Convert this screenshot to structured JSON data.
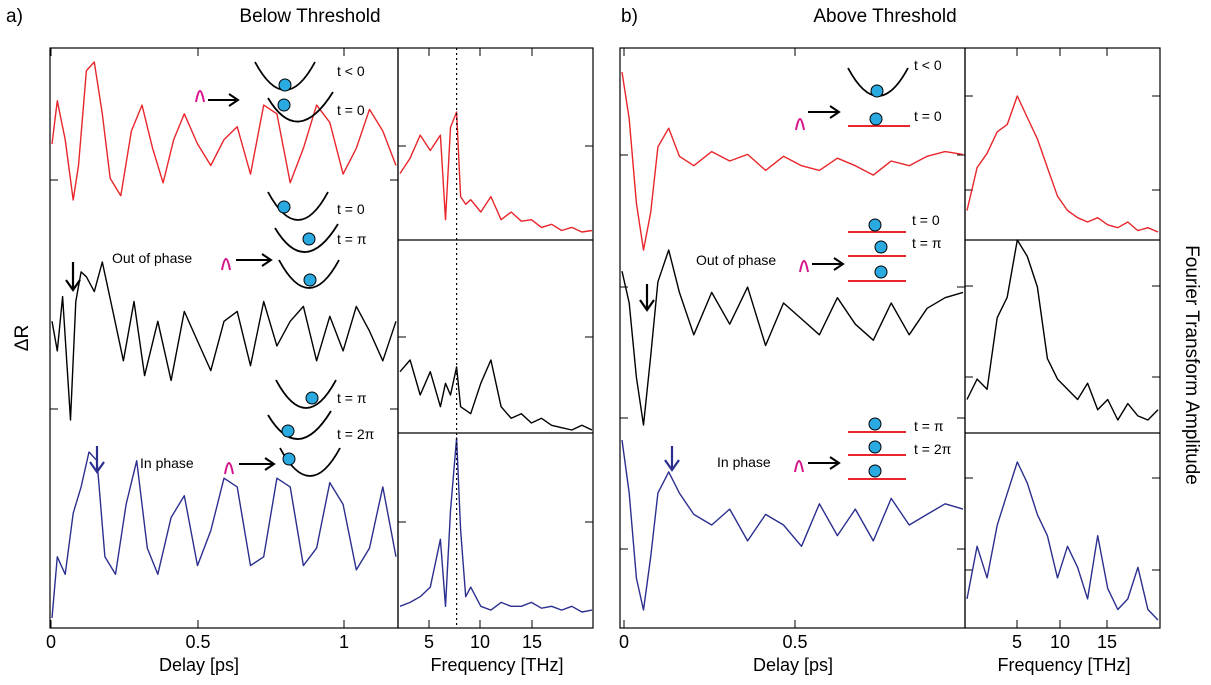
{
  "panel_a": {
    "letter": "a)",
    "title": "Below Threshold",
    "ylabel": "ΔR",
    "time_xlabel": "Delay [ps]",
    "freq_xlabel": "Frequency [THz]",
    "time_ticks": [
      "0",
      "0.5",
      "1"
    ],
    "freq_ticks": [
      "5",
      "10",
      "15"
    ],
    "dotted_line_freq": 6.6,
    "insets": {
      "top": {
        "labels": [
          "t < 0",
          "t = 0"
        ]
      },
      "middle": {
        "caption": "Out of phase",
        "labels": [
          "t = 0",
          "t = π"
        ]
      },
      "bottom": {
        "caption": "In phase",
        "labels": [
          "t = π",
          "t = 2π"
        ]
      }
    }
  },
  "panel_b": {
    "letter": "b)",
    "title": "Above Threshold",
    "time_xlabel": "Delay [ps]",
    "freq_xlabel": "Frequency [THz]",
    "right_ylabel": "Fourier Transform Amplitude",
    "time_ticks": [
      "0",
      "0.5"
    ],
    "freq_ticks": [
      "5",
      "10",
      "15"
    ],
    "insets": {
      "top": {
        "labels": [
          "t < 0",
          "t = 0"
        ]
      },
      "middle": {
        "caption": "Out of phase",
        "labels": [
          "t = 0",
          "t = π"
        ]
      },
      "bottom": {
        "caption": "In phase",
        "labels": [
          "t = π",
          "t = 2π"
        ]
      }
    }
  },
  "colors": {
    "red": "#e8262b",
    "black": "#000000",
    "blue": "#2b2f8e",
    "pulse": "#d6158c",
    "ball": "#29aae1"
  },
  "chart_data": [
    {
      "type": "line",
      "panel": "a-time",
      "xlabel": "Delay [ps]",
      "ylabel": "ΔR",
      "xlim": [
        0,
        1.3
      ],
      "series": [
        {
          "color": "#e8262b",
          "x": [
            0,
            0.02,
            0.05,
            0.08,
            0.1,
            0.13,
            0.16,
            0.19,
            0.22,
            0.26,
            0.3,
            0.34,
            0.38,
            0.42,
            0.46,
            0.5,
            0.55,
            0.6,
            0.65,
            0.7,
            0.75,
            0.8,
            0.85,
            0.9,
            0.95,
            1.0,
            1.05,
            1.1,
            1.15,
            1.2,
            1.25,
            1.3
          ],
          "y": [
            0.05,
            0.55,
            0.1,
            -0.6,
            -0.2,
            0.9,
            1.0,
            0.4,
            -0.35,
            -0.55,
            0.2,
            0.5,
            0.0,
            -0.4,
            0.1,
            0.4,
            0.05,
            -0.2,
            0.1,
            0.25,
            -0.3,
            0.5,
            0.4,
            -0.4,
            0.0,
            0.5,
            0.3,
            -0.3,
            0.0,
            0.45,
            0.2,
            -0.2
          ]
        },
        {
          "color": "#000000",
          "x": [
            0,
            0.02,
            0.04,
            0.07,
            0.09,
            0.11,
            0.13,
            0.16,
            0.19,
            0.23,
            0.27,
            0.31,
            0.35,
            0.4,
            0.45,
            0.5,
            0.55,
            0.6,
            0.65,
            0.7,
            0.75,
            0.8,
            0.85,
            0.9,
            0.95,
            1.0,
            1.05,
            1.1,
            1.15,
            1.2,
            1.25,
            1.3
          ],
          "y": [
            0.1,
            -0.2,
            0.35,
            -0.9,
            0.3,
            0.6,
            0.55,
            0.4,
            0.7,
            0.2,
            -0.3,
            0.3,
            -0.45,
            0.1,
            -0.5,
            0.2,
            -0.1,
            -0.4,
            0.1,
            0.2,
            -0.35,
            0.3,
            -0.15,
            0.1,
            0.25,
            -0.3,
            0.15,
            -0.2,
            0.25,
            0.0,
            -0.3,
            0.1
          ]
        },
        {
          "color": "#2b2f8e",
          "x": [
            0,
            0.02,
            0.05,
            0.08,
            0.11,
            0.14,
            0.17,
            0.2,
            0.24,
            0.28,
            0.32,
            0.36,
            0.4,
            0.45,
            0.5,
            0.55,
            0.6,
            0.65,
            0.7,
            0.75,
            0.8,
            0.85,
            0.9,
            0.95,
            1.0,
            1.05,
            1.1,
            1.15,
            1.2,
            1.25,
            1.3
          ],
          "y": [
            -1.0,
            -0.3,
            -0.5,
            0.2,
            0.5,
            0.9,
            0.8,
            -0.3,
            -0.5,
            0.3,
            0.8,
            -0.2,
            -0.5,
            0.15,
            0.4,
            -0.4,
            0.0,
            0.6,
            0.5,
            -0.4,
            -0.3,
            0.6,
            0.5,
            -0.4,
            -0.2,
            0.55,
            0.3,
            -0.45,
            -0.2,
            0.5,
            -0.3
          ]
        }
      ]
    },
    {
      "type": "line",
      "panel": "a-fft",
      "xlabel": "Frequency [THz]",
      "xlim": [
        1,
        20
      ],
      "series": [
        {
          "color": "#e8262b",
          "x": [
            1,
            2,
            3,
            4,
            5,
            5.5,
            6,
            6.6,
            7,
            7.5,
            8,
            9,
            10,
            11,
            12,
            13,
            14,
            15,
            16,
            17,
            18,
            19,
            20
          ],
          "y": [
            0.45,
            0.55,
            0.7,
            0.6,
            0.7,
            0.15,
            0.75,
            0.85,
            0.3,
            0.25,
            0.28,
            0.2,
            0.3,
            0.15,
            0.2,
            0.14,
            0.15,
            0.1,
            0.12,
            0.08,
            0.1,
            0.07,
            0.08
          ]
        },
        {
          "color": "#000000",
          "x": [
            1,
            2,
            3,
            4,
            5,
            5.5,
            6,
            6.6,
            7,
            8,
            9,
            10,
            11,
            12,
            13,
            14,
            15,
            16,
            17,
            18,
            19,
            20
          ],
          "y": [
            0.3,
            0.35,
            0.2,
            0.3,
            0.15,
            0.25,
            0.2,
            0.32,
            0.15,
            0.12,
            0.25,
            0.35,
            0.15,
            0.1,
            0.12,
            0.08,
            0.1,
            0.07,
            0.06,
            0.05,
            0.07,
            0.05
          ]
        },
        {
          "color": "#2b2f8e",
          "x": [
            1,
            2,
            3,
            4,
            5,
            5.5,
            6,
            6.6,
            7,
            7.5,
            8,
            9,
            10,
            11,
            12,
            13,
            14,
            15,
            16,
            17,
            18,
            19,
            20
          ],
          "y": [
            0.1,
            0.12,
            0.15,
            0.2,
            0.45,
            0.1,
            0.6,
            0.98,
            0.5,
            0.15,
            0.2,
            0.1,
            0.08,
            0.12,
            0.1,
            0.1,
            0.12,
            0.09,
            0.1,
            0.08,
            0.1,
            0.07,
            0.08
          ]
        }
      ]
    },
    {
      "type": "line",
      "panel": "b-time",
      "xlabel": "Delay [ps]",
      "xlim": [
        0,
        0.95
      ],
      "series": [
        {
          "color": "#e8262b",
          "x": [
            0,
            0.02,
            0.04,
            0.06,
            0.08,
            0.1,
            0.13,
            0.16,
            0.2,
            0.25,
            0.3,
            0.35,
            0.4,
            0.45,
            0.5,
            0.55,
            0.6,
            0.65,
            0.7,
            0.75,
            0.8,
            0.85,
            0.9,
            0.95
          ],
          "y": [
            1.0,
            0.5,
            -0.4,
            -0.9,
            -0.5,
            0.2,
            0.4,
            0.1,
            0.0,
            0.15,
            0.05,
            0.12,
            -0.05,
            0.1,
            0.0,
            -0.05,
            0.08,
            0.0,
            -0.1,
            0.05,
            0.0,
            0.1,
            0.15,
            0.12
          ]
        },
        {
          "color": "#000000",
          "x": [
            0,
            0.02,
            0.04,
            0.06,
            0.08,
            0.1,
            0.13,
            0.16,
            0.2,
            0.25,
            0.3,
            0.35,
            0.4,
            0.45,
            0.5,
            0.55,
            0.6,
            0.65,
            0.7,
            0.75,
            0.8,
            0.85,
            0.9,
            0.95
          ],
          "y": [
            0.5,
            0.2,
            -0.5,
            -0.95,
            -0.3,
            0.4,
            0.7,
            0.3,
            -0.1,
            0.3,
            0.0,
            0.35,
            -0.2,
            0.2,
            0.05,
            -0.1,
            0.25,
            0.0,
            -0.15,
            0.2,
            -0.1,
            0.15,
            0.25,
            0.3
          ]
        },
        {
          "color": "#2b2f8e",
          "x": [
            0,
            0.02,
            0.04,
            0.06,
            0.08,
            0.1,
            0.13,
            0.16,
            0.2,
            0.25,
            0.3,
            0.35,
            0.4,
            0.45,
            0.5,
            0.55,
            0.6,
            0.65,
            0.7,
            0.75,
            0.8,
            0.85,
            0.9,
            0.95
          ],
          "y": [
            0.9,
            0.4,
            -0.4,
            -0.7,
            -0.2,
            0.4,
            0.6,
            0.4,
            0.2,
            0.1,
            0.25,
            -0.05,
            0.2,
            0.1,
            -0.1,
            0.3,
            0.0,
            0.25,
            -0.05,
            0.35,
            0.1,
            0.2,
            0.3,
            0.25
          ]
        }
      ]
    },
    {
      "type": "line",
      "panel": "b-fft",
      "xlabel": "Frequency [THz]",
      "ylabel": "Fourier Transform Amplitude",
      "xlim": [
        1,
        20
      ],
      "series": [
        {
          "color": "#e8262b",
          "x": [
            1,
            2,
            3,
            4,
            5,
            6,
            7,
            8,
            9,
            10,
            11,
            12,
            13,
            14,
            15,
            16,
            17,
            18,
            19,
            20
          ],
          "y": [
            0.2,
            0.5,
            0.6,
            0.75,
            0.8,
            1.0,
            0.85,
            0.7,
            0.5,
            0.3,
            0.2,
            0.15,
            0.12,
            0.15,
            0.1,
            0.08,
            0.12,
            0.06,
            0.08,
            0.05
          ]
        },
        {
          "color": "#000000",
          "x": [
            1,
            2,
            3,
            4,
            5,
            6,
            7,
            8,
            9,
            10,
            11,
            12,
            13,
            14,
            15,
            16,
            17,
            18,
            19,
            20
          ],
          "y": [
            0.2,
            0.3,
            0.25,
            0.6,
            0.7,
            0.98,
            0.9,
            0.75,
            0.4,
            0.3,
            0.25,
            0.2,
            0.28,
            0.15,
            0.2,
            0.1,
            0.18,
            0.12,
            0.1,
            0.15
          ]
        },
        {
          "color": "#2b2f8e",
          "x": [
            1,
            2,
            3,
            4,
            5,
            6,
            7,
            8,
            9,
            10,
            11,
            12,
            13,
            14,
            15,
            16,
            17,
            18,
            19,
            20
          ],
          "y": [
            0.2,
            0.45,
            0.3,
            0.55,
            0.7,
            0.85,
            0.75,
            0.6,
            0.5,
            0.3,
            0.45,
            0.35,
            0.2,
            0.5,
            0.25,
            0.15,
            0.2,
            0.35,
            0.15,
            0.1
          ]
        }
      ]
    }
  ]
}
